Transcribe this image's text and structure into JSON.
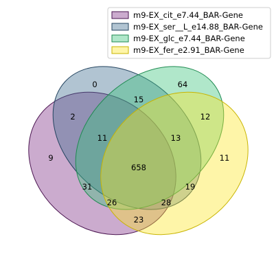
{
  "sets": [
    {
      "name": "m9-EX_cit_e7.44_BAR-Gene",
      "fill": "#7e2c85",
      "edge": "#4a1450"
    },
    {
      "name": "m9-EX_ser__L_e14.88_BAR-Gene",
      "fill": "#3c6b8e",
      "edge": "#24445f"
    },
    {
      "name": "m9-EX_glc_e7.44_BAR-Gene",
      "fill": "#39c47a",
      "edge": "#1f8a51"
    },
    {
      "name": "m9-EX_fer_e2.91_BAR-Gene",
      "fill": "#fde725",
      "edge": "#c8b400"
    }
  ],
  "regions": {
    "only_cit": "9",
    "only_ser": "0",
    "only_glc": "64",
    "only_fer": "11",
    "cit_ser": "2",
    "ser_glc": "15",
    "glc_fer": "12",
    "cit_fer": "23",
    "cit_ser_glc": "11",
    "ser_glc_fer": "13",
    "cit_ser_fer": "26",
    "cit_glc_fer": "28",
    "cit_glc": "31",
    "ser_fer": "19",
    "all_four": "658"
  }
}
